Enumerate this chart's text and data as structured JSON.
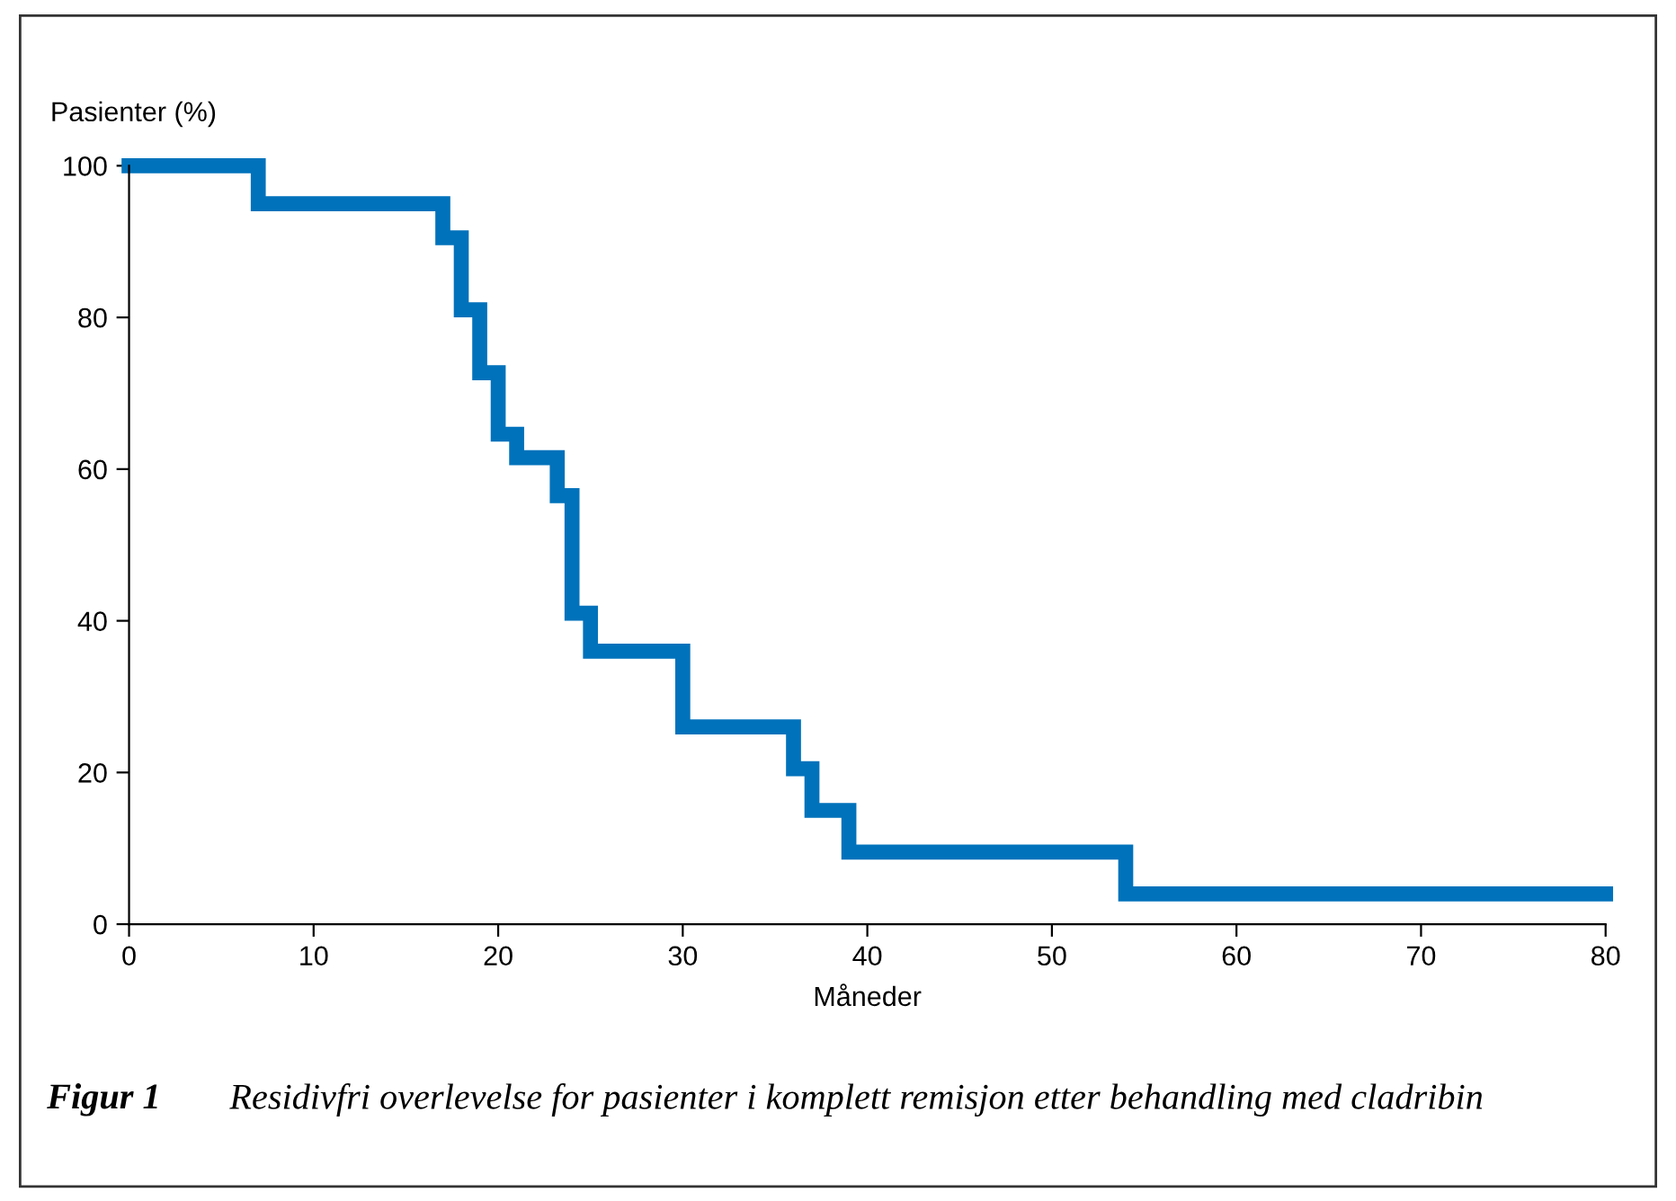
{
  "chart_data": {
    "type": "step",
    "xlabel": "Måneder",
    "ylabel": "Pasienter (%)",
    "series": [
      {
        "color": "#0072bb",
        "x": [
          0,
          7,
          17,
          18,
          19,
          20,
          21,
          23.2,
          24,
          25,
          30,
          36,
          37,
          39,
          54,
          80
        ],
        "values": [
          100,
          95,
          90.5,
          81,
          72.7,
          64.6,
          61.5,
          56.5,
          41,
          36,
          26,
          20.5,
          15,
          9.5,
          4,
          4
        ]
      }
    ],
    "xlim": [
      0,
      80
    ],
    "xticks": [
      0,
      10,
      20,
      30,
      40,
      50,
      60,
      70,
      80
    ],
    "ylim": [
      0,
      100
    ],
    "yticks": [
      0,
      20,
      40,
      60,
      80,
      100
    ],
    "grid": false,
    "marker": "none",
    "line_style": "solid",
    "annotations": [
      "Figur 1",
      "Residivfri overlevelse for pasienter i komplett remisjon etter behandling med cladribin"
    ]
  }
}
